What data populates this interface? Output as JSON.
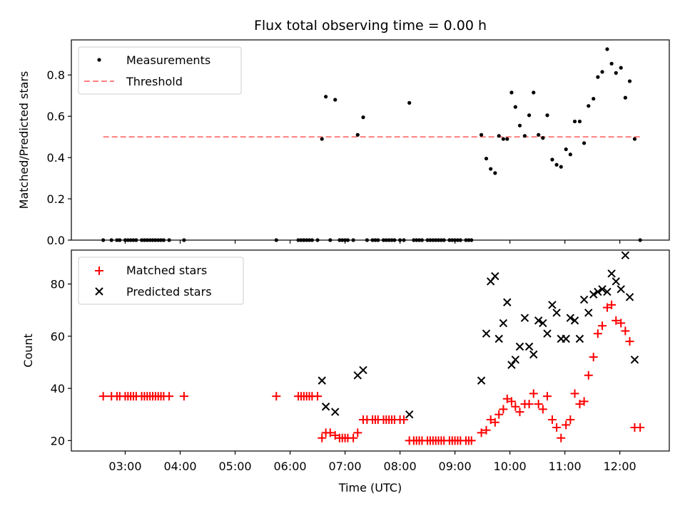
{
  "chart_data": {
    "title": "Flux total observing time = 0.00 h",
    "xlabel": "Time (UTC)",
    "x_tick_labels": [
      "03:00",
      "04:00",
      "05:00",
      "06:00",
      "07:00",
      "08:00",
      "09:00",
      "10:00",
      "11:00",
      "12:00"
    ],
    "x_range_hours": [
      2.02,
      12.9
    ],
    "top": {
      "type": "scatter",
      "ylabel": "Matched/Predicted stars",
      "ylim": [
        0,
        0.97
      ],
      "yticks": [
        0.0,
        0.2,
        0.4,
        0.6,
        0.8
      ],
      "threshold": 0.5,
      "legend_location": "upper-left",
      "legend": [
        {
          "key": "measurements",
          "label": "Measurements"
        },
        {
          "key": "threshold",
          "label": "Threshold"
        }
      ],
      "series_colors": {
        "measurements": "#000000",
        "threshold": "#ff7f7f"
      },
      "measurements": [
        [
          2.6,
          0
        ],
        [
          2.75,
          0
        ],
        [
          2.85,
          0
        ],
        [
          2.9,
          0
        ],
        [
          3.0,
          0
        ],
        [
          3.05,
          0
        ],
        [
          3.1,
          0
        ],
        [
          3.15,
          0
        ],
        [
          3.2,
          0
        ],
        [
          3.3,
          0
        ],
        [
          3.35,
          0
        ],
        [
          3.4,
          0
        ],
        [
          3.45,
          0
        ],
        [
          3.5,
          0
        ],
        [
          3.55,
          0
        ],
        [
          3.6,
          0
        ],
        [
          3.65,
          0
        ],
        [
          3.7,
          0
        ],
        [
          3.8,
          0
        ],
        [
          4.07,
          0
        ],
        [
          5.75,
          0
        ],
        [
          6.15,
          0
        ],
        [
          6.2,
          0
        ],
        [
          6.25,
          0
        ],
        [
          6.3,
          0
        ],
        [
          6.35,
          0
        ],
        [
          6.4,
          0
        ],
        [
          6.5,
          0
        ],
        [
          6.58,
          0.49
        ],
        [
          6.65,
          0.695
        ],
        [
          6.73,
          0
        ],
        [
          6.82,
          0.68
        ],
        [
          6.9,
          0
        ],
        [
          6.95,
          0
        ],
        [
          7.0,
          0
        ],
        [
          7.05,
          0
        ],
        [
          7.15,
          0
        ],
        [
          7.23,
          0.51
        ],
        [
          7.33,
          0.595
        ],
        [
          7.4,
          0
        ],
        [
          7.5,
          0
        ],
        [
          7.55,
          0
        ],
        [
          7.6,
          0
        ],
        [
          7.7,
          0
        ],
        [
          7.75,
          0
        ],
        [
          7.8,
          0
        ],
        [
          7.85,
          0
        ],
        [
          7.9,
          0
        ],
        [
          8.0,
          0
        ],
        [
          8.07,
          0
        ],
        [
          8.17,
          0.665
        ],
        [
          8.25,
          0
        ],
        [
          8.3,
          0
        ],
        [
          8.35,
          0
        ],
        [
          8.4,
          0
        ],
        [
          8.5,
          0
        ],
        [
          8.55,
          0
        ],
        [
          8.6,
          0
        ],
        [
          8.65,
          0
        ],
        [
          8.7,
          0
        ],
        [
          8.75,
          0
        ],
        [
          8.8,
          0
        ],
        [
          8.9,
          0
        ],
        [
          8.95,
          0
        ],
        [
          9.0,
          0
        ],
        [
          9.05,
          0
        ],
        [
          9.1,
          0
        ],
        [
          9.2,
          0
        ],
        [
          9.25,
          0
        ],
        [
          9.3,
          0
        ],
        [
          9.48,
          0.51
        ],
        [
          9.57,
          0.395
        ],
        [
          9.65,
          0.345
        ],
        [
          9.73,
          0.325
        ],
        [
          9.8,
          0.505
        ],
        [
          9.88,
          0.49
        ],
        [
          9.95,
          0.49
        ],
        [
          10.03,
          0.715
        ],
        [
          10.1,
          0.645
        ],
        [
          10.18,
          0.555
        ],
        [
          10.27,
          0.505
        ],
        [
          10.35,
          0.605
        ],
        [
          10.43,
          0.715
        ],
        [
          10.52,
          0.51
        ],
        [
          10.6,
          0.495
        ],
        [
          10.68,
          0.605
        ],
        [
          10.77,
          0.39
        ],
        [
          10.85,
          0.365
        ],
        [
          10.93,
          0.355
        ],
        [
          11.02,
          0.44
        ],
        [
          11.1,
          0.415
        ],
        [
          11.18,
          0.575
        ],
        [
          11.27,
          0.575
        ],
        [
          11.35,
          0.47
        ],
        [
          11.43,
          0.65
        ],
        [
          11.52,
          0.685
        ],
        [
          11.6,
          0.79
        ],
        [
          11.68,
          0.815
        ],
        [
          11.77,
          0.925
        ],
        [
          11.85,
          0.855
        ],
        [
          11.93,
          0.81
        ],
        [
          12.02,
          0.835
        ],
        [
          12.1,
          0.69
        ],
        [
          12.18,
          0.77
        ],
        [
          12.27,
          0.49
        ],
        [
          12.37,
          0
        ]
      ]
    },
    "bottom": {
      "type": "scatter",
      "ylabel": "Count",
      "ylim": [
        16,
        93
      ],
      "yticks": [
        20,
        40,
        60,
        80
      ],
      "legend_location": "upper-left",
      "legend": [
        {
          "key": "matched",
          "label": "Matched stars"
        },
        {
          "key": "predicted",
          "label": "Predicted stars"
        }
      ],
      "series_colors": {
        "matched": "#ff0000",
        "predicted": "#000000"
      },
      "matched": [
        [
          2.6,
          37
        ],
        [
          2.75,
          37
        ],
        [
          2.85,
          37
        ],
        [
          2.9,
          37
        ],
        [
          3.0,
          37
        ],
        [
          3.05,
          37
        ],
        [
          3.1,
          37
        ],
        [
          3.15,
          37
        ],
        [
          3.2,
          37
        ],
        [
          3.3,
          37
        ],
        [
          3.35,
          37
        ],
        [
          3.4,
          37
        ],
        [
          3.45,
          37
        ],
        [
          3.5,
          37
        ],
        [
          3.55,
          37
        ],
        [
          3.6,
          37
        ],
        [
          3.65,
          37
        ],
        [
          3.7,
          37
        ],
        [
          3.8,
          37
        ],
        [
          4.07,
          37
        ],
        [
          5.75,
          37
        ],
        [
          6.15,
          37
        ],
        [
          6.2,
          37
        ],
        [
          6.25,
          37
        ],
        [
          6.3,
          37
        ],
        [
          6.35,
          37
        ],
        [
          6.4,
          37
        ],
        [
          6.5,
          37
        ],
        [
          6.58,
          21
        ],
        [
          6.65,
          23
        ],
        [
          6.73,
          23
        ],
        [
          6.82,
          22
        ],
        [
          6.9,
          21
        ],
        [
          6.95,
          21
        ],
        [
          7.0,
          21
        ],
        [
          7.05,
          21
        ],
        [
          7.15,
          21
        ],
        [
          7.23,
          23
        ],
        [
          7.33,
          28
        ],
        [
          7.4,
          28
        ],
        [
          7.5,
          28
        ],
        [
          7.55,
          28
        ],
        [
          7.6,
          28
        ],
        [
          7.7,
          28
        ],
        [
          7.75,
          28
        ],
        [
          7.8,
          28
        ],
        [
          7.85,
          28
        ],
        [
          7.9,
          28
        ],
        [
          8.0,
          28
        ],
        [
          8.07,
          28
        ],
        [
          8.17,
          20
        ],
        [
          8.25,
          20
        ],
        [
          8.3,
          20
        ],
        [
          8.35,
          20
        ],
        [
          8.4,
          20
        ],
        [
          8.5,
          20
        ],
        [
          8.55,
          20
        ],
        [
          8.6,
          20
        ],
        [
          8.65,
          20
        ],
        [
          8.7,
          20
        ],
        [
          8.75,
          20
        ],
        [
          8.8,
          20
        ],
        [
          8.9,
          20
        ],
        [
          8.95,
          20
        ],
        [
          9.0,
          20
        ],
        [
          9.05,
          20
        ],
        [
          9.1,
          20
        ],
        [
          9.2,
          20
        ],
        [
          9.25,
          20
        ],
        [
          9.3,
          20
        ],
        [
          9.48,
          23
        ],
        [
          9.57,
          24
        ],
        [
          9.65,
          28
        ],
        [
          9.73,
          27
        ],
        [
          9.8,
          30
        ],
        [
          9.88,
          32
        ],
        [
          9.95,
          36
        ],
        [
          10.03,
          35
        ],
        [
          10.1,
          33
        ],
        [
          10.18,
          31
        ],
        [
          10.27,
          34
        ],
        [
          10.35,
          34
        ],
        [
          10.43,
          38
        ],
        [
          10.52,
          34
        ],
        [
          10.6,
          32
        ],
        [
          10.68,
          37
        ],
        [
          10.77,
          28
        ],
        [
          10.85,
          25
        ],
        [
          10.93,
          21
        ],
        [
          11.02,
          26
        ],
        [
          11.1,
          28
        ],
        [
          11.18,
          38
        ],
        [
          11.27,
          34
        ],
        [
          11.35,
          35
        ],
        [
          11.43,
          45
        ],
        [
          11.52,
          52
        ],
        [
          11.6,
          61
        ],
        [
          11.68,
          64
        ],
        [
          11.77,
          71
        ],
        [
          11.85,
          72
        ],
        [
          11.93,
          66
        ],
        [
          12.02,
          65
        ],
        [
          12.1,
          62
        ],
        [
          12.18,
          58
        ],
        [
          12.27,
          25
        ],
        [
          12.37,
          25
        ]
      ],
      "predicted": [
        [
          6.58,
          43
        ],
        [
          6.65,
          33
        ],
        [
          6.82,
          31
        ],
        [
          7.23,
          45
        ],
        [
          7.33,
          47
        ],
        [
          8.17,
          30
        ],
        [
          9.48,
          43
        ],
        [
          9.57,
          61
        ],
        [
          9.65,
          81
        ],
        [
          9.73,
          83
        ],
        [
          9.8,
          59
        ],
        [
          9.88,
          65
        ],
        [
          9.95,
          73
        ],
        [
          10.03,
          49
        ],
        [
          10.1,
          51
        ],
        [
          10.18,
          56
        ],
        [
          10.27,
          67
        ],
        [
          10.35,
          56
        ],
        [
          10.43,
          53
        ],
        [
          10.52,
          66
        ],
        [
          10.6,
          65
        ],
        [
          10.68,
          61
        ],
        [
          10.77,
          72
        ],
        [
          10.85,
          69
        ],
        [
          10.93,
          59
        ],
        [
          11.02,
          59
        ],
        [
          11.1,
          67
        ],
        [
          11.18,
          66
        ],
        [
          11.27,
          59
        ],
        [
          11.35,
          74
        ],
        [
          11.43,
          69
        ],
        [
          11.52,
          76
        ],
        [
          11.6,
          77
        ],
        [
          11.68,
          78
        ],
        [
          11.77,
          77
        ],
        [
          11.85,
          84
        ],
        [
          11.93,
          81
        ],
        [
          12.02,
          78
        ],
        [
          12.1,
          91
        ],
        [
          12.18,
          75
        ],
        [
          12.27,
          51
        ]
      ]
    }
  }
}
